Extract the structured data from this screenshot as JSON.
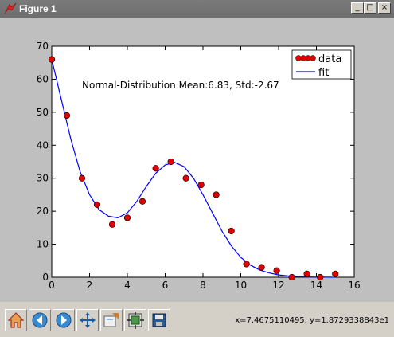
{
  "window": {
    "title": "Figure 1",
    "buttons": {
      "minimize": "_",
      "maximize": "□",
      "close": "×"
    }
  },
  "toolbar": {
    "buttons": [
      {
        "name": "home",
        "icon": "home-icon"
      },
      {
        "name": "back",
        "icon": "back-arrow-icon"
      },
      {
        "name": "forward",
        "icon": "forward-arrow-icon"
      },
      {
        "name": "pan",
        "icon": "pan-move-icon"
      },
      {
        "name": "zoom",
        "icon": "zoom-rect-icon"
      },
      {
        "name": "subplots",
        "icon": "subplots-config-icon"
      },
      {
        "name": "save",
        "icon": "save-disk-icon"
      }
    ],
    "coords": "x=7.4675110495, y=1.8729338843e1"
  },
  "chart_data": {
    "type": "scatter",
    "title": "",
    "annotation": "Normal-Distribution Mean:6.83, Std:-2.67",
    "xlim": [
      0,
      16
    ],
    "ylim": [
      0,
      70
    ],
    "xticks": [
      "0",
      "2",
      "4",
      "6",
      "8",
      "10",
      "12",
      "14",
      "16"
    ],
    "yticks": [
      "0",
      "10",
      "20",
      "30",
      "40",
      "50",
      "60",
      "70"
    ],
    "legend": {
      "position": "top-right",
      "entries": [
        "data",
        "fit"
      ]
    },
    "series": [
      {
        "name": "data",
        "kind": "scatter",
        "color": "#e00000",
        "x": [
          0,
          0.8,
          1.6,
          2.4,
          3.2,
          4.0,
          4.8,
          5.5,
          6.3,
          7.1,
          7.9,
          8.7,
          9.5,
          10.3,
          11.1,
          11.9,
          12.7,
          13.5,
          14.2,
          15.0
        ],
        "y": [
          66,
          49,
          30,
          22,
          16,
          18,
          23,
          33,
          35,
          30,
          28,
          25,
          14,
          4,
          3,
          2,
          0,
          1,
          0,
          1
        ]
      },
      {
        "name": "fit",
        "kind": "line",
        "color": "#0000ff",
        "x": [
          0,
          0.5,
          1,
          1.5,
          2,
          2.5,
          3,
          3.5,
          4,
          4.5,
          5,
          5.5,
          6,
          6.5,
          7,
          7.5,
          8,
          8.5,
          9,
          9.5,
          10,
          10.5,
          11,
          11.5,
          12,
          12.5,
          13,
          13.5,
          14,
          14.5,
          15
        ],
        "y": [
          66,
          54,
          42,
          32,
          25,
          20.5,
          18.5,
          18,
          19.5,
          23,
          27.5,
          31.5,
          34,
          34.8,
          33.5,
          30,
          25,
          19.5,
          14,
          9.5,
          6,
          3.7,
          2.2,
          1.3,
          0.7,
          0.4,
          0.2,
          0.1,
          0.05,
          0.02,
          0
        ]
      }
    ]
  }
}
